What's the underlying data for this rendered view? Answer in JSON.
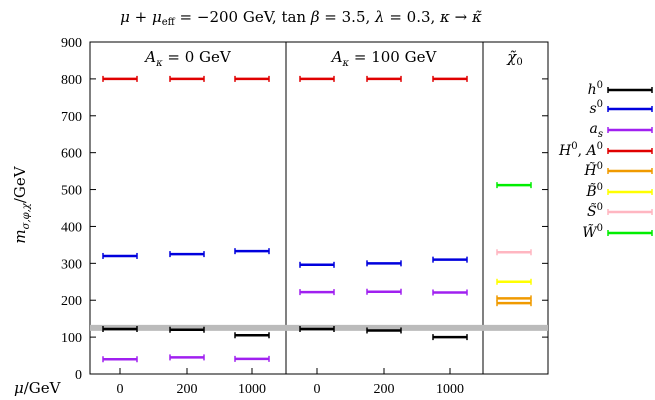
{
  "chart_data": {
    "type": "scatter",
    "title": "μ + μ_eff = −200 GeV, tan β = 3.5, λ = 0.3, κ → κ̃",
    "ylabel": "m_{σ,φ,χ}/GeV",
    "xlabel": "μ/GeV",
    "ylim": [
      0,
      900
    ],
    "yticks": [
      0,
      100,
      200,
      300,
      400,
      500,
      600,
      700,
      800,
      900
    ],
    "grid": false,
    "legend_position": "right outside",
    "panels": [
      {
        "title": "A_κ = 0 GeV",
        "categories": [
          "0",
          "200",
          "1000"
        ]
      },
      {
        "title": "A_κ = 100 GeV",
        "categories": [
          "0",
          "200",
          "1000"
        ]
      },
      {
        "title": "χ̃0",
        "categories": []
      }
    ],
    "reference_line": {
      "y": 125,
      "color": "#bbbbbb"
    },
    "series": [
      {
        "name": "h0",
        "color": "#000000",
        "points": [
          {
            "panel": 0,
            "cat": 0,
            "y": 122
          },
          {
            "panel": 0,
            "cat": 1,
            "y": 120
          },
          {
            "panel": 0,
            "cat": 2,
            "y": 105
          },
          {
            "panel": 1,
            "cat": 0,
            "y": 122
          },
          {
            "panel": 1,
            "cat": 1,
            "y": 118
          },
          {
            "panel": 1,
            "cat": 2,
            "y": 100
          }
        ]
      },
      {
        "name": "s0",
        "color": "#0000dd",
        "points": [
          {
            "panel": 0,
            "cat": 0,
            "y": 320
          },
          {
            "panel": 0,
            "cat": 1,
            "y": 325
          },
          {
            "panel": 0,
            "cat": 2,
            "y": 333
          },
          {
            "panel": 1,
            "cat": 0,
            "y": 296
          },
          {
            "panel": 1,
            "cat": 1,
            "y": 300
          },
          {
            "panel": 1,
            "cat": 2,
            "y": 310
          }
        ]
      },
      {
        "name": "a_s",
        "color": "#a020f0",
        "points": [
          {
            "panel": 0,
            "cat": 0,
            "y": 40
          },
          {
            "panel": 0,
            "cat": 1,
            "y": 45
          },
          {
            "panel": 0,
            "cat": 2,
            "y": 41
          },
          {
            "panel": 1,
            "cat": 0,
            "y": 222
          },
          {
            "panel": 1,
            "cat": 1,
            "y": 223
          },
          {
            "panel": 1,
            "cat": 2,
            "y": 221
          }
        ]
      },
      {
        "name": "H0, A0",
        "color": "#e00000",
        "points": [
          {
            "panel": 0,
            "cat": 0,
            "y": 800
          },
          {
            "panel": 0,
            "cat": 1,
            "y": 800
          },
          {
            "panel": 0,
            "cat": 2,
            "y": 800
          },
          {
            "panel": 1,
            "cat": 0,
            "y": 800
          },
          {
            "panel": 1,
            "cat": 1,
            "y": 800
          },
          {
            "panel": 1,
            "cat": 2,
            "y": 800
          }
        ]
      },
      {
        "name": "H̃0",
        "color": "#f09a00",
        "points": [
          {
            "panel": 2,
            "cat": 0,
            "y": 205
          },
          {
            "panel": 2,
            "cat": 0,
            "y": 192
          }
        ]
      },
      {
        "name": "B̃0",
        "color": "#ffff00",
        "points": [
          {
            "panel": 2,
            "cat": 0,
            "y": 250
          }
        ]
      },
      {
        "name": "S̃0",
        "color": "#ffb6c1",
        "points": [
          {
            "panel": 2,
            "cat": 0,
            "y": 330
          }
        ]
      },
      {
        "name": "W̃0",
        "color": "#00ee00",
        "points": [
          {
            "panel": 2,
            "cat": 0,
            "y": 512
          }
        ]
      }
    ]
  },
  "legend_labels": {
    "h0": {
      "base": "h",
      "sup": "0"
    },
    "s0": {
      "base": "s",
      "sup": "0"
    },
    "a_s": {
      "base": "a",
      "sub": "s"
    },
    "H0A0": {
      "base": "H",
      "sup": "0",
      "sep": ", ",
      "base2": "A",
      "sup2": "0"
    },
    "Ht0": {
      "base": "H̃",
      "sup": "0"
    },
    "Bt0": {
      "base": "B̃",
      "sup": "0"
    },
    "St0": {
      "base": "S̃",
      "sup": "0"
    },
    "Wt0": {
      "base": "W̃",
      "sup": "0"
    }
  }
}
